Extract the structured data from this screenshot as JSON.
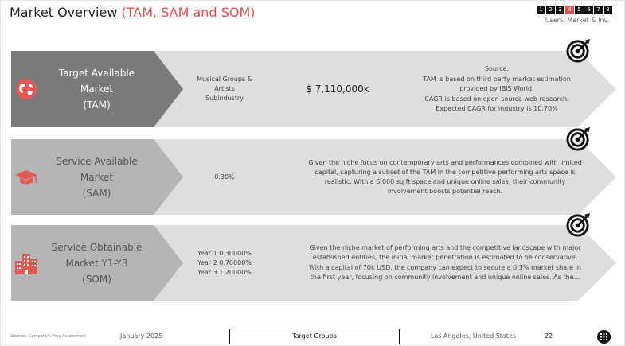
{
  "header": {
    "title_main": "Market Overview",
    "title_accent": "(TAM, SAM and SOM)",
    "nav_pages": [
      "1",
      "2",
      "3",
      "4",
      "5",
      "6",
      "7",
      "8"
    ],
    "nav_active_index": 3,
    "nav_label": "Users, Market & Inv."
  },
  "rows": [
    {
      "icon": "globe-icon",
      "label_lines": [
        "Target Available",
        "Market",
        "(TAM)"
      ],
      "segment2_lines": [
        "Musical Groups &",
        "Artists",
        "Subindustry"
      ],
      "segment3_value": "$ 7,110,000k",
      "segment4_lines": [
        "Source:",
        "TAM is based on third party market estimation",
        "provided by IBIS World.",
        "CAGR is based on open source web research.",
        "Expected CAGR for industry is 10.70%"
      ],
      "corner_icon": "target-icon"
    },
    {
      "icon": "graduation-cap-icon",
      "label_lines": [
        "Service Available",
        "Market",
        "(SAM)"
      ],
      "segment2_lines": [
        "0.30%"
      ],
      "segment3_lines": [
        "Given the niche focus on contemporary arts and performances combined with limited",
        "capital, capturing a subset of the TAM in the competitive performing arts space is",
        "realistic. With a 6,000 sq ft space and unique online sales, their community",
        "involvement boosts potential reach."
      ],
      "corner_icon": "target-icon"
    },
    {
      "icon": "buildings-icon",
      "label_lines": [
        "Service Obtainable",
        "Market Y1-Y3",
        "(SOM)"
      ],
      "segment2_lines": [
        "Year 1 0.30000%",
        "Year 2 0.70000%",
        "Year 3 1.20000%"
      ],
      "segment3_lines": [
        "Given the niche market of performing arts and the competitive landscape with major",
        "established entities, the initial market penetration is estimated to be conservative.",
        "With a capital of 70k USD, the company can expect to secure a 0.3% market share in",
        "the first year, focusing on community involvement and unique online sales. As the..."
      ],
      "corner_icon": "target-icon"
    }
  ],
  "footer": {
    "sources": "Sources: Company's Prop Assessment",
    "date": "January 2025",
    "section": "Target Groups",
    "location": "Los Angeles, United States",
    "page_number": "22",
    "logo_icon": "company-logo-icon"
  },
  "colors": {
    "accent": "#d9534f",
    "tam_arrow": "#7a7a7a",
    "sam_som_arrow": "#b5b5b5",
    "segment": "#dedede"
  }
}
